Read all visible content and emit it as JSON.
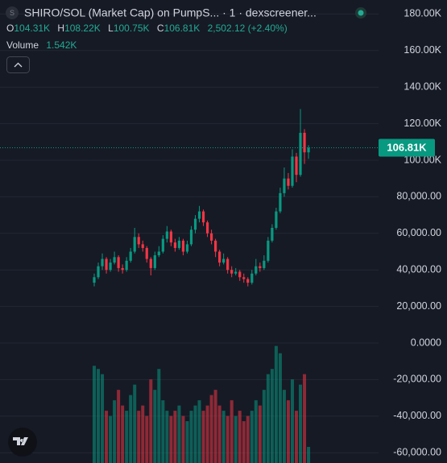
{
  "chart_data": {
    "type": "candlestick",
    "title": "SHIRO/SOL (Market Cap) on PumpS... · 1 · dexscreener...",
    "icon_letter": "S",
    "legend": {
      "o": "O",
      "open": "104.31K",
      "h": "H",
      "high": "108.22K",
      "l": "L",
      "low": "100.75K",
      "c": "C",
      "close": "106.81K",
      "change": "2,502.12 (+2.40%)"
    },
    "volume_label": "Volume",
    "volume_value_label": "1.542K",
    "up_color": "#089981",
    "down_color": "#f23645",
    "grid": true,
    "ylim": [
      -65640,
      187660
    ],
    "yticks": [
      {
        "value": 180000,
        "label": "180.00K"
      },
      {
        "value": 160000,
        "label": "160.00K"
      },
      {
        "value": 140000,
        "label": "140.00K"
      },
      {
        "value": 120000,
        "label": "120.00K"
      },
      {
        "value": 100000,
        "label": "100.00K"
      },
      {
        "value": 80000,
        "label": "80,000.00"
      },
      {
        "value": 60000,
        "label": "60,000.00"
      },
      {
        "value": 40000,
        "label": "40,000.00"
      },
      {
        "value": 20000,
        "label": "20,000.00"
      },
      {
        "value": 0,
        "label": "0.0000"
      },
      {
        "value": -20000,
        "label": "-20,000.00"
      },
      {
        "value": -40000,
        "label": "-40,000.00"
      },
      {
        "value": -60000,
        "label": "-60,000.00"
      }
    ],
    "last_price": {
      "value": 106810,
      "label": "106.81K"
    },
    "open": [
      33000,
      36000,
      42000,
      46000,
      40000,
      44000,
      47000,
      41000,
      40000,
      45000,
      50000,
      58000,
      54000,
      52000,
      46000,
      41000,
      48000,
      50000,
      57000,
      61000,
      55000,
      52000,
      56000,
      50000,
      54000,
      62000,
      68000,
      72000,
      66000,
      60000,
      56000,
      50000,
      44000,
      46000,
      40000,
      38000,
      39000,
      36000,
      35000,
      33000,
      38000,
      42000,
      41000,
      45000,
      56000,
      63000,
      72000,
      82000,
      90000,
      86000,
      102000,
      92000,
      115000,
      104310
    ],
    "high": [
      38000,
      44000,
      49000,
      47000,
      46000,
      50000,
      48000,
      43000,
      47000,
      52000,
      63000,
      60000,
      56000,
      53000,
      47000,
      50000,
      53000,
      59000,
      64000,
      62000,
      57000,
      58000,
      57000,
      56000,
      64000,
      70000,
      75000,
      73000,
      67000,
      62000,
      57000,
      51000,
      49000,
      47000,
      42000,
      41000,
      40000,
      38000,
      36000,
      40000,
      46000,
      44000,
      48000,
      58000,
      65000,
      74000,
      85000,
      96000,
      93000,
      106000,
      104000,
      128000,
      117000,
      108220
    ],
    "low": [
      31000,
      35000,
      40000,
      38000,
      39000,
      43000,
      39000,
      38000,
      39000,
      44000,
      49000,
      52000,
      50000,
      44000,
      37000,
      40000,
      47000,
      49000,
      55000,
      53000,
      50000,
      51000,
      48000,
      49000,
      53000,
      60000,
      66000,
      64000,
      58000,
      54000,
      47000,
      42000,
      43000,
      38000,
      36000,
      37000,
      34000,
      33000,
      31000,
      32000,
      37000,
      39000,
      40000,
      44000,
      55000,
      62000,
      71000,
      80000,
      84000,
      85000,
      88000,
      91000,
      98000,
      100750
    ],
    "close": [
      36000,
      42000,
      46000,
      40000,
      44000,
      47000,
      41000,
      40000,
      45000,
      50000,
      58000,
      54000,
      52000,
      46000,
      41000,
      48000,
      50000,
      57000,
      61000,
      55000,
      52000,
      56000,
      50000,
      54000,
      62000,
      68000,
      72000,
      66000,
      60000,
      56000,
      50000,
      44000,
      46000,
      40000,
      38000,
      39000,
      36000,
      35000,
      33000,
      38000,
      42000,
      41000,
      45000,
      56000,
      63000,
      72000,
      82000,
      90000,
      86000,
      102000,
      92000,
      115000,
      104310,
      106810
    ],
    "volume": [
      9300,
      9000,
      8500,
      5000,
      4500,
      6000,
      7000,
      5500,
      5000,
      6500,
      7500,
      5000,
      5500,
      4500,
      8000,
      7000,
      9000,
      6000,
      5000,
      4500,
      5000,
      5500,
      4500,
      4000,
      5000,
      5500,
      6000,
      5000,
      5500,
      6500,
      7000,
      5500,
      5000,
      4500,
      6000,
      4500,
      5000,
      4000,
      4500,
      5000,
      6000,
      5500,
      7000,
      8500,
      9000,
      11200,
      10500,
      7000,
      6000,
      8000,
      5000,
      7500,
      8500,
      1542
    ],
    "y2lim": [
      0,
      44300
    ]
  }
}
